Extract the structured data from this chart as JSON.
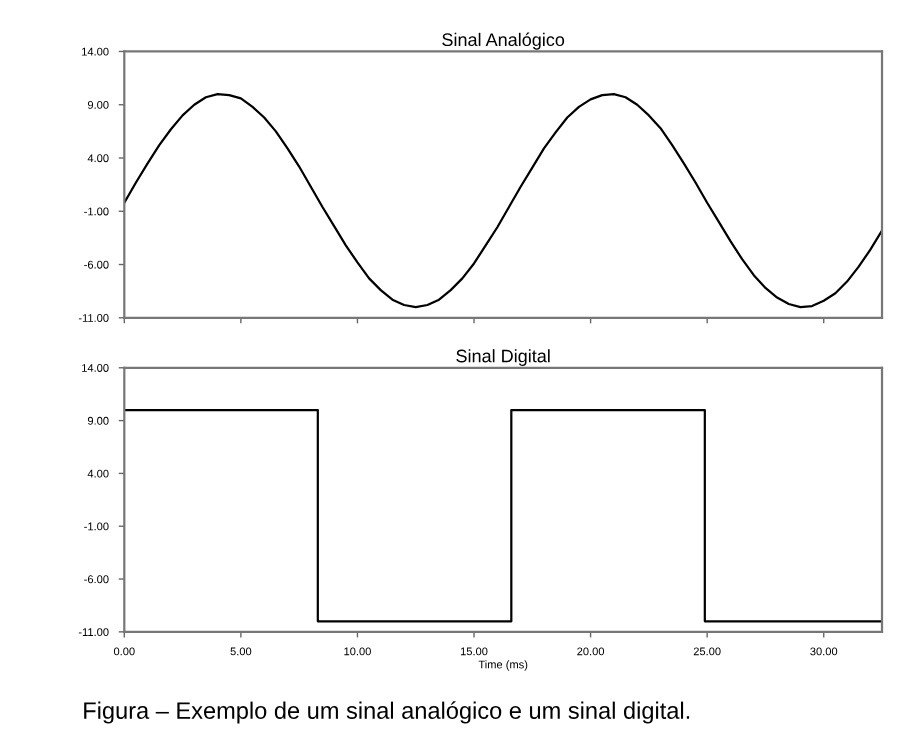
{
  "chart_data": [
    {
      "type": "line",
      "title": "Sinal Analógico",
      "tick_labels": "y",
      "grid": false,
      "x": [
        0,
        0.5,
        1,
        1.5,
        2,
        2.5,
        3,
        3.5,
        4,
        4.5,
        5,
        5.5,
        6,
        6.5,
        7,
        7.5,
        8,
        8.5,
        9,
        9.5,
        10,
        10.5,
        11,
        11.5,
        12,
        12.5,
        13,
        13.5,
        14,
        14.5,
        15,
        15.5,
        16,
        16.5,
        17,
        17.5,
        18,
        18.5,
        19,
        19.5,
        20,
        20.5,
        21,
        21.5,
        22,
        22.5,
        23,
        23.5,
        24,
        24.5,
        25,
        25.5,
        26,
        26.5,
        27,
        27.5,
        28,
        28.5,
        29,
        29.5,
        30,
        30.5,
        31,
        31.5,
        32,
        32.5
      ],
      "series": [
        {
          "color": "#000000",
          "values": [
            -0.2,
            1.7,
            3.5,
            5.2,
            6.7,
            8.0,
            9.0,
            9.7,
            10.0,
            9.9,
            9.6,
            8.8,
            7.8,
            6.5,
            4.9,
            3.2,
            1.3,
            -0.6,
            -2.4,
            -4.2,
            -5.8,
            -7.3,
            -8.4,
            -9.3,
            -9.8,
            -10.0,
            -9.8,
            -9.3,
            -8.4,
            -7.3,
            -5.9,
            -4.2,
            -2.5,
            -0.6,
            1.3,
            3.1,
            4.9,
            6.4,
            7.8,
            8.8,
            9.5,
            9.9,
            10.0,
            9.7,
            9.0,
            8.0,
            6.8,
            5.2,
            3.5,
            1.7,
            -0.2,
            -2.0,
            -3.8,
            -5.5,
            -7.0,
            -8.2,
            -9.1,
            -9.7,
            -10.0,
            -9.9,
            -9.4,
            -8.7,
            -7.6,
            -6.2,
            -4.6,
            -2.8
          ]
        }
      ],
      "xlim": [
        0,
        32.5
      ],
      "xticks": [
        0,
        5,
        10,
        15,
        20,
        25,
        30
      ],
      "ylim": [
        -11,
        14
      ],
      "yticks": [
        {
          "value": 14,
          "label": "14.00"
        },
        {
          "value": 9,
          "label": "9.00"
        },
        {
          "value": 4,
          "label": "4.00"
        },
        {
          "value": -1,
          "label": "-1.00"
        },
        {
          "value": -6,
          "label": "-6.00"
        },
        {
          "value": -11,
          "label": "-11.00"
        }
      ]
    },
    {
      "type": "step",
      "title": "Sinal Digital",
      "xlabel": "Time (ms)",
      "grid": false,
      "x": [
        0,
        8.3,
        16.6,
        24.9,
        32.5
      ],
      "series": [
        {
          "color": "#000000",
          "values": [
            10,
            -10,
            10,
            -10,
            -10
          ]
        }
      ],
      "xlim": [
        0,
        32.5
      ],
      "xticks": [
        {
          "value": 0,
          "label": "0.00"
        },
        {
          "value": 5,
          "label": "5.00"
        },
        {
          "value": 10,
          "label": "10.00"
        },
        {
          "value": 15,
          "label": "15.00"
        },
        {
          "value": 20,
          "label": "20.00"
        },
        {
          "value": 25,
          "label": "25.00"
        },
        {
          "value": 30,
          "label": "30.00"
        }
      ],
      "ylim": [
        -11,
        14
      ],
      "yticks": [
        {
          "value": 14,
          "label": "14.00"
        },
        {
          "value": 9,
          "label": "9.00"
        },
        {
          "value": 4,
          "label": "4.00"
        },
        {
          "value": -1,
          "label": "-1.00"
        },
        {
          "value": -6,
          "label": "-6.00"
        },
        {
          "value": -11,
          "label": "-11.00"
        }
      ],
      "annotations": [
        "Figura – Exemplo de um sinal analógico e um sinal digital."
      ]
    }
  ]
}
